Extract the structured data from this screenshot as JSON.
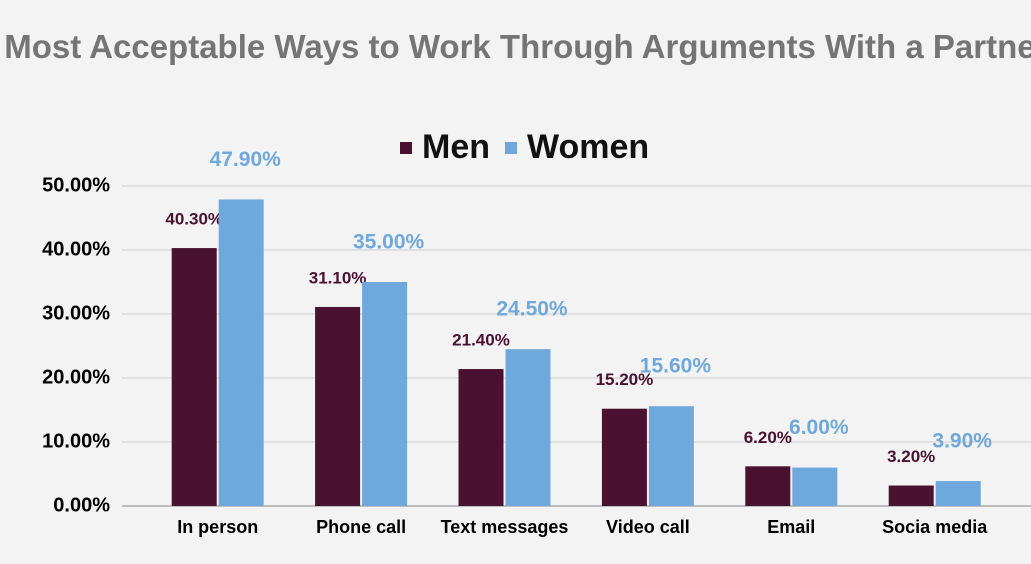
{
  "chart_data": {
    "type": "bar",
    "title": "Most Acceptable Ways to Work Through Arguments With a Partner.",
    "categories": [
      "In person",
      "Phone call",
      "Text messages",
      "Video call",
      "Email",
      "Socia media"
    ],
    "series": [
      {
        "name": "Men",
        "color": "#4a1130",
        "values": [
          40.3,
          31.1,
          21.4,
          15.2,
          6.2,
          3.2
        ],
        "value_labels": [
          "40.30%",
          "31.10%",
          "21.40%",
          "15.20%",
          "6.20%",
          "3.20%"
        ]
      },
      {
        "name": "Women",
        "color": "#6fa8dc",
        "values": [
          47.9,
          35.0,
          24.5,
          15.6,
          6.0,
          3.9
        ],
        "value_labels": [
          "47.90%",
          "35.00%",
          "24.50%",
          "15.60%",
          "6.00%",
          "3.90%"
        ]
      }
    ],
    "ylim": [
      0,
      50
    ],
    "yticks": [
      {
        "value": 0,
        "label": "0.00%"
      },
      {
        "value": 10,
        "label": "10.00%"
      },
      {
        "value": 20,
        "label": "20.00%"
      },
      {
        "value": 30,
        "label": "30.00%"
      },
      {
        "value": 40,
        "label": "40.00%"
      },
      {
        "value": 50,
        "label": "50.00%"
      }
    ],
    "grid": true,
    "legend": "top"
  }
}
